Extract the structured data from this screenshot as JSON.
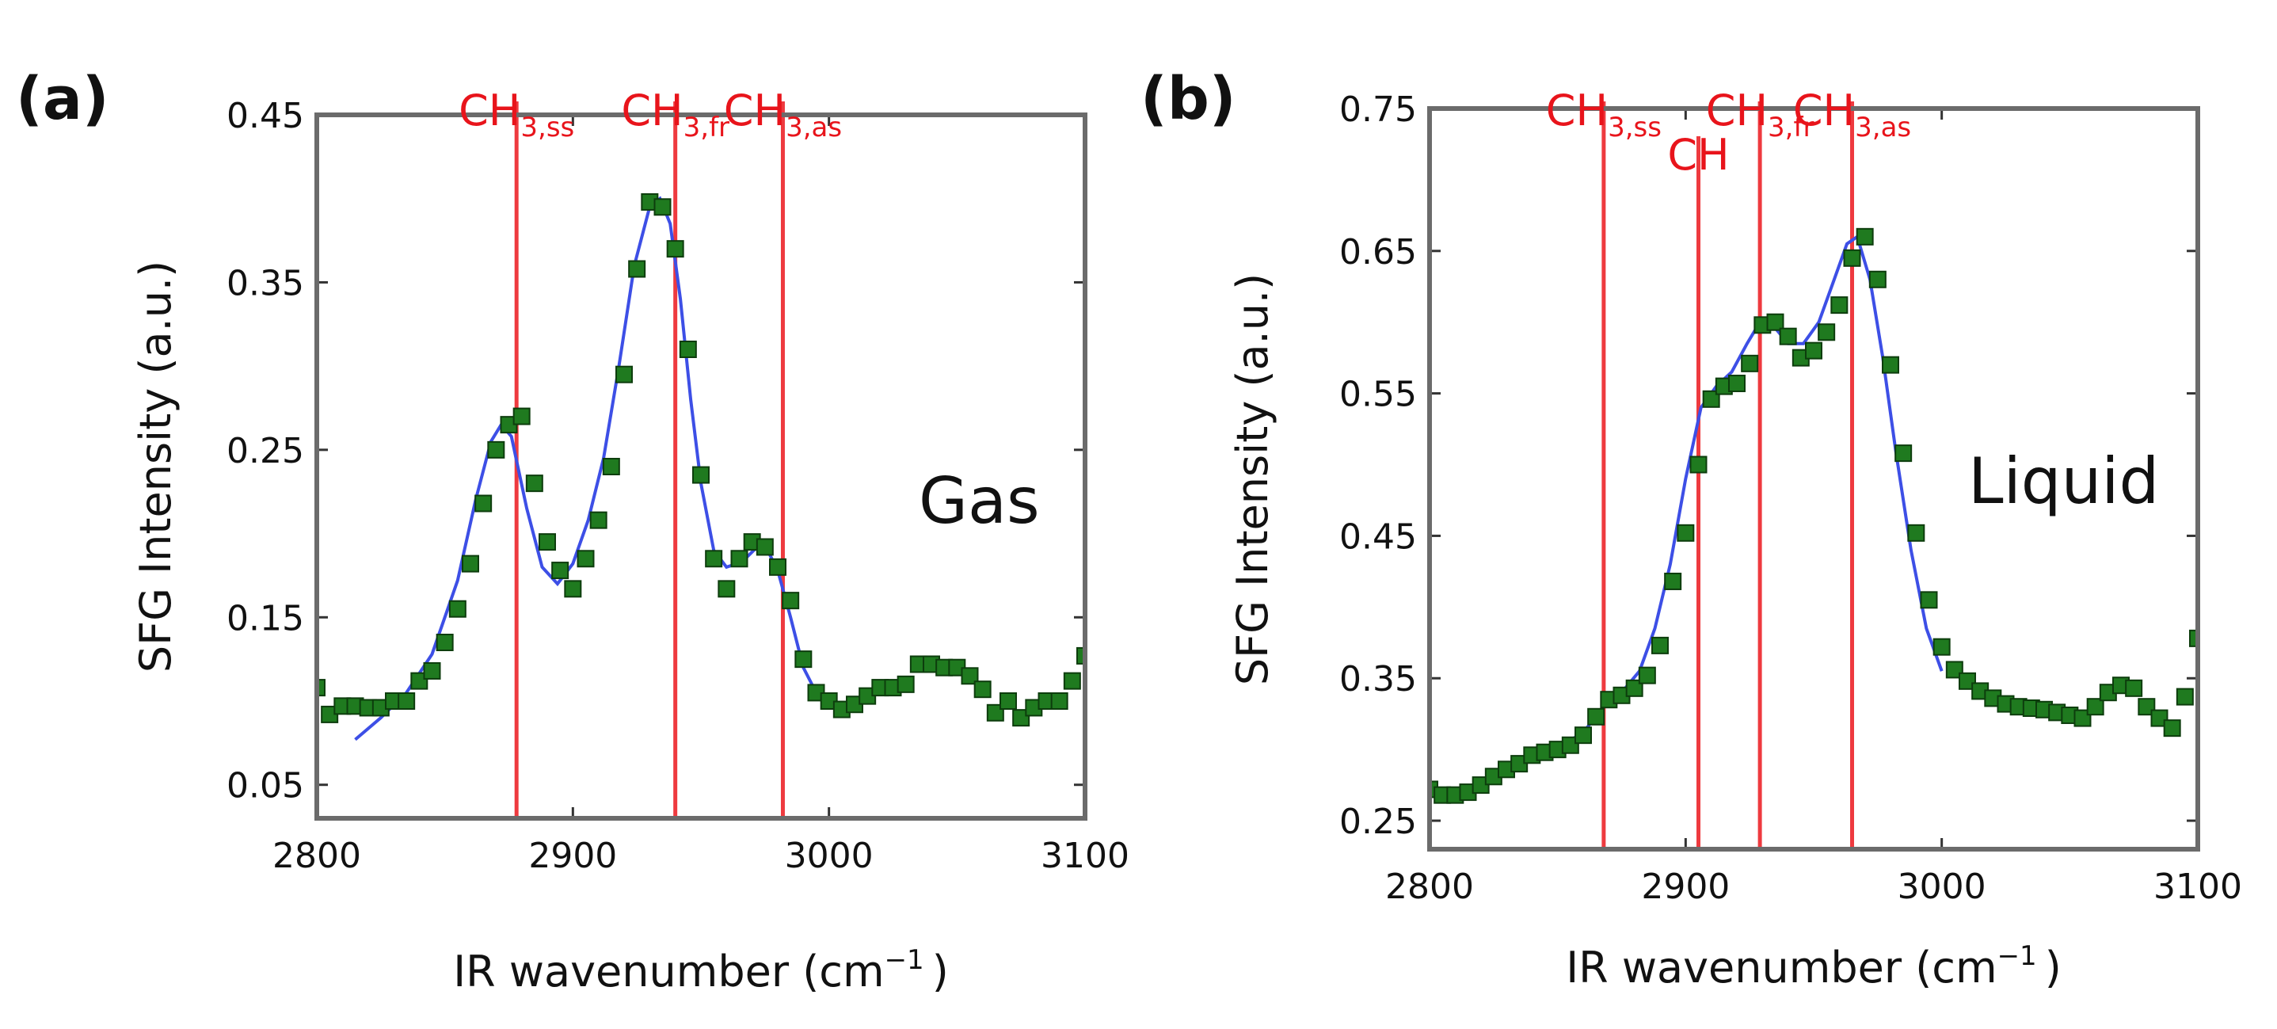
{
  "chart_data": [
    {
      "type": "scatter",
      "panel_label": "(a)",
      "annotation": "Gas",
      "title": "",
      "xlabel": "IR wavenumber (cm",
      "xlabel_sup": "−1",
      "xlabel_close": ")",
      "ylabel": "SFG Intensity (a.u.)",
      "xlim": [
        2800,
        3100
      ],
      "ylim": [
        0.03,
        0.45
      ],
      "xticks": [
        2800,
        2900,
        3000,
        3100
      ],
      "xtick_labels": [
        "2800",
        "2900",
        "3000",
        "3100"
      ],
      "yticks": [
        0.05,
        0.15,
        0.25,
        0.35,
        0.45
      ],
      "ytick_labels": [
        "0.05",
        "0.15",
        "0.25",
        "0.35",
        "0.45"
      ],
      "peaks": [
        {
          "x": 2878,
          "label": "CH",
          "sub": "3,ss"
        },
        {
          "x": 2940,
          "label": "CH",
          "sub": "3,fr"
        },
        {
          "x": 2982,
          "label": "CH",
          "sub": "3,as"
        }
      ],
      "series": [
        {
          "name": "data",
          "x": [
            2800,
            2805,
            2810,
            2815,
            2820,
            2825,
            2830,
            2835,
            2840,
            2845,
            2850,
            2855,
            2860,
            2865,
            2870,
            2875,
            2880,
            2885,
            2890,
            2895,
            2900,
            2905,
            2910,
            2915,
            2920,
            2925,
            2930,
            2935,
            2940,
            2945,
            2950,
            2955,
            2960,
            2965,
            2970,
            2975,
            2980,
            2985,
            2990,
            2995,
            3000,
            3005,
            3010,
            3015,
            3020,
            3025,
            3030,
            3035,
            3040,
            3045,
            3050,
            3055,
            3060,
            3065,
            3070,
            3075,
            3080,
            3085,
            3090,
            3095,
            3100
          ],
          "y": [
            0.108,
            0.092,
            0.097,
            0.097,
            0.096,
            0.096,
            0.1,
            0.1,
            0.112,
            0.118,
            0.135,
            0.155,
            0.182,
            0.218,
            0.25,
            0.265,
            0.27,
            0.23,
            0.195,
            0.178,
            0.167,
            0.185,
            0.208,
            0.24,
            0.295,
            0.358,
            0.398,
            0.395,
            0.37,
            0.31,
            0.235,
            0.185,
            0.167,
            0.185,
            0.195,
            0.192,
            0.18,
            0.16,
            0.125,
            0.105,
            0.1,
            0.095,
            0.098,
            0.103,
            0.108,
            0.108,
            0.11,
            0.122,
            0.122,
            0.12,
            0.12,
            0.115,
            0.107,
            0.093,
            0.1,
            0.09,
            0.096,
            0.1,
            0.1,
            0.112,
            0.127
          ]
        },
        {
          "name": "fit",
          "x": [
            2815,
            2825,
            2835,
            2845,
            2855,
            2862,
            2868,
            2872,
            2876,
            2882,
            2888,
            2894,
            2900,
            2906,
            2912,
            2918,
            2924,
            2930,
            2934,
            2938,
            2942,
            2946,
            2950,
            2955,
            2960,
            2966,
            2972,
            2976,
            2980,
            2985,
            2990,
            2995
          ],
          "y": [
            0.077,
            0.09,
            0.105,
            0.128,
            0.172,
            0.22,
            0.255,
            0.265,
            0.258,
            0.215,
            0.18,
            0.17,
            0.182,
            0.208,
            0.245,
            0.3,
            0.36,
            0.395,
            0.4,
            0.385,
            0.34,
            0.28,
            0.23,
            0.19,
            0.18,
            0.183,
            0.192,
            0.19,
            0.178,
            0.15,
            0.12,
            0.105
          ]
        }
      ]
    },
    {
      "type": "scatter",
      "panel_label": "(b)",
      "annotation": "Liquid",
      "title": "",
      "xlabel": "IR wavenumber (cm",
      "xlabel_sup": "−1",
      "xlabel_close": ")",
      "ylabel": "SFG Intensity (a.u.)",
      "xlim": [
        2800,
        3100
      ],
      "ylim": [
        0.23,
        0.75
      ],
      "xticks": [
        2800,
        2900,
        3000,
        3100
      ],
      "xtick_labels": [
        "2800",
        "2900",
        "3000",
        "3100"
      ],
      "yticks": [
        0.25,
        0.35,
        0.45,
        0.55,
        0.65,
        0.75
      ],
      "ytick_labels": [
        "0.25",
        "0.35",
        "0.45",
        "0.55",
        "0.65",
        "0.75"
      ],
      "peaks": [
        {
          "x": 2868,
          "label": "CH",
          "sub": "3,ss",
          "row": "top"
        },
        {
          "x": 2905,
          "label": "CH",
          "sub": "",
          "row": "low"
        },
        {
          "x": 2929,
          "label": "CH",
          "sub": "3,fr",
          "row": "mid"
        },
        {
          "x": 2965,
          "label": "CH",
          "sub": "3,as",
          "row": "top"
        }
      ],
      "series": [
        {
          "name": "data",
          "x": [
            2800,
            2805,
            2810,
            2815,
            2820,
            2825,
            2830,
            2835,
            2840,
            2845,
            2850,
            2855,
            2860,
            2865,
            2870,
            2875,
            2880,
            2885,
            2890,
            2895,
            2900,
            2905,
            2910,
            2915,
            2920,
            2925,
            2930,
            2935,
            2940,
            2945,
            2950,
            2955,
            2960,
            2965,
            2970,
            2975,
            2980,
            2985,
            2990,
            2995,
            3000,
            3005,
            3010,
            3015,
            3020,
            3025,
            3030,
            3035,
            3040,
            3045,
            3050,
            3055,
            3060,
            3065,
            3070,
            3075,
            3080,
            3085,
            3090,
            3095,
            3100
          ],
          "y": [
            0.272,
            0.268,
            0.268,
            0.27,
            0.275,
            0.281,
            0.286,
            0.29,
            0.296,
            0.298,
            0.3,
            0.303,
            0.31,
            0.323,
            0.335,
            0.338,
            0.343,
            0.352,
            0.373,
            0.418,
            0.452,
            0.5,
            0.546,
            0.555,
            0.557,
            0.571,
            0.598,
            0.6,
            0.59,
            0.575,
            0.58,
            0.593,
            0.612,
            0.645,
            0.66,
            0.63,
            0.57,
            0.508,
            0.452,
            0.405,
            0.372,
            0.356,
            0.348,
            0.341,
            0.336,
            0.332,
            0.33,
            0.329,
            0.328,
            0.326,
            0.324,
            0.322,
            0.33,
            0.34,
            0.345,
            0.343,
            0.33,
            0.322,
            0.315,
            0.337,
            0.378
          ]
        },
        {
          "name": "fit",
          "x": [
            2800,
            2810,
            2820,
            2830,
            2840,
            2850,
            2860,
            2868,
            2875,
            2882,
            2888,
            2894,
            2900,
            2906,
            2912,
            2918,
            2924,
            2929,
            2934,
            2940,
            2946,
            2952,
            2958,
            2963,
            2967,
            2972,
            2977,
            2982,
            2988,
            2994,
            3000
          ],
          "y": [
            0.268,
            0.27,
            0.277,
            0.287,
            0.296,
            0.301,
            0.312,
            0.33,
            0.34,
            0.355,
            0.385,
            0.43,
            0.49,
            0.54,
            0.555,
            0.565,
            0.585,
            0.6,
            0.598,
            0.585,
            0.585,
            0.6,
            0.63,
            0.655,
            0.66,
            0.63,
            0.575,
            0.51,
            0.44,
            0.385,
            0.355
          ]
        }
      ]
    }
  ]
}
